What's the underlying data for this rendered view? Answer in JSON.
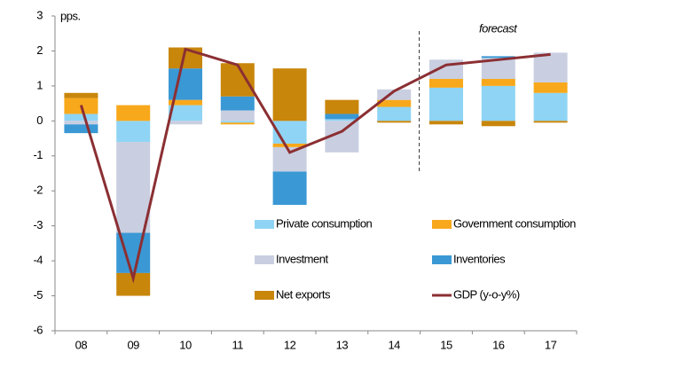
{
  "chart_data": {
    "type": "bar",
    "annotations": [
      "pps.",
      "forecast"
    ],
    "categories": [
      "08",
      "09",
      "10",
      "11",
      "12",
      "13",
      "14",
      "15",
      "16",
      "17"
    ],
    "series": [
      {
        "name": "Private consumption",
        "color": "#8fd4f4",
        "values": [
          0.2,
          -0.6,
          0.45,
          -0.05,
          -0.65,
          0.05,
          0.4,
          0.95,
          1.0,
          0.8
        ]
      },
      {
        "name": "Government consumption",
        "color": "#f8a81b",
        "values": [
          0.45,
          0.45,
          0.15,
          -0.05,
          -0.1,
          0,
          0.2,
          0.25,
          0.2,
          0.3
        ]
      },
      {
        "name": "Investment",
        "color": "#c9cfe1",
        "values": [
          -0.1,
          -2.6,
          -0.1,
          0.3,
          -0.7,
          -0.9,
          0.3,
          0.55,
          0.6,
          0.85
        ]
      },
      {
        "name": "Inventories",
        "color": "#3a98d4",
        "values": [
          -0.25,
          -1.15,
          0.9,
          0.4,
          -0.95,
          0.15,
          0,
          0,
          0.05,
          0
        ]
      },
      {
        "name": "Net exports",
        "color": "#c8860b",
        "values": [
          0.15,
          -0.65,
          0.6,
          0.95,
          1.5,
          0.4,
          -0.05,
          -0.1,
          -0.15,
          -0.05
        ]
      },
      {
        "name": "GDP (y-o-y%)",
        "type": "line",
        "color": "#8b2f33",
        "values": [
          0.45,
          -4.5,
          2.05,
          1.6,
          -0.9,
          -0.3,
          0.85,
          1.6,
          1.75,
          1.9
        ]
      }
    ],
    "ylim": [
      -6,
      3
    ],
    "yticks": [
      -6,
      -5,
      -4,
      -3,
      -2,
      -1,
      0,
      1,
      2,
      3
    ],
    "grid": false
  }
}
